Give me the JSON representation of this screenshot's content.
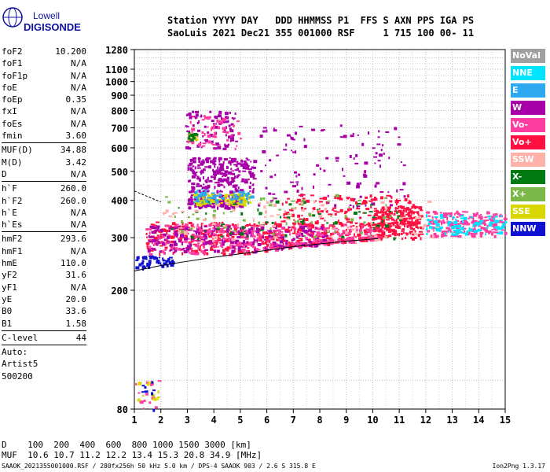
{
  "logo": {
    "line1": "Lowell",
    "line2": "DIGISONDE"
  },
  "header": {
    "line1": "Station YYYY DAY   DDD HHMMSS P1  FFS S AXN PPS IGA PS",
    "line2": "SaoLuis 2021 Dec21 355 001000 RSF     1 715 100 00- 11"
  },
  "params": [
    {
      "k": "foF2",
      "v": "10.200"
    },
    {
      "k": "foF1",
      "v": "N/A"
    },
    {
      "k": "foF1p",
      "v": "N/A"
    },
    {
      "k": "foE",
      "v": "N/A"
    },
    {
      "k": "foEp",
      "v": "0.35"
    },
    {
      "k": "fxI",
      "v": "N/A"
    },
    {
      "k": "foEs",
      "v": "N/A"
    },
    {
      "k": "fmin",
      "v": "3.60"
    },
    {
      "sep": true
    },
    {
      "k": "MUF(D)",
      "v": "34.88"
    },
    {
      "k": "M(D)",
      "v": "3.42"
    },
    {
      "k": "D",
      "v": "N/A"
    },
    {
      "sep": true
    },
    {
      "k": "h`F",
      "v": "260.0"
    },
    {
      "k": "h`F2",
      "v": "260.0"
    },
    {
      "k": "h`E",
      "v": "N/A"
    },
    {
      "k": "h`Es",
      "v": "N/A"
    },
    {
      "sep": true
    },
    {
      "k": "hmF2",
      "v": "293.6"
    },
    {
      "k": "hmF1",
      "v": "N/A"
    },
    {
      "k": "hmE",
      "v": "110.0"
    },
    {
      "k": "yF2",
      "v": "31.6"
    },
    {
      "k": "yF1",
      "v": "N/A"
    },
    {
      "k": "yE",
      "v": "20.0"
    },
    {
      "k": "B0",
      "v": "33.6"
    },
    {
      "k": "B1",
      "v": "1.58"
    },
    {
      "sep": true
    },
    {
      "k": "C-level",
      "v": "44"
    },
    {
      "sep": true
    },
    {
      "text": "Auto:"
    },
    {
      "text": "Artist5"
    },
    {
      "text": "500200"
    }
  ],
  "legend": [
    {
      "label": "NoVal",
      "color": "#a0a0a0"
    },
    {
      "label": "NNE",
      "color": "#00e5ff"
    },
    {
      "label": "E",
      "color": "#2ea8f0"
    },
    {
      "label": "W",
      "color": "#a800a8"
    },
    {
      "label": "Vo-",
      "color": "#ff3ca0"
    },
    {
      "label": "Vo+",
      "color": "#ff1040"
    },
    {
      "label": "SSW",
      "color": "#ffb0a8"
    },
    {
      "label": "X-",
      "color": "#007a10"
    },
    {
      "label": "X+",
      "color": "#7ab84a"
    },
    {
      "label": "SSE",
      "color": "#d8d800"
    },
    {
      "label": "NNW",
      "color": "#1010d0"
    }
  ],
  "muf_table": {
    "row1": "D    100  200  400  600  800 1000 1500 3000 [km]",
    "row2": "MUF  10.6 10.7 11.2 12.2 13.4 15.3 20.8 34.9 [MHz]"
  },
  "footer": "SAAOK_2021355001000.RSF / 280fx256h 50 kHz 5.0 km / DPS-4 SAAOK 903 / 2.6 S 315.8 E",
  "version": "Ion2Png 1.3.17",
  "chart_data": {
    "type": "scatter",
    "title": "",
    "xlabel": "",
    "ylabel": "",
    "xlim": [
      1,
      15
    ],
    "ylim": [
      80,
      1280
    ],
    "y_scale": "log",
    "x_ticks": [
      1,
      2,
      3,
      4,
      5,
      6,
      7,
      8,
      9,
      10,
      11,
      12,
      13,
      14,
      15
    ],
    "y_ticks": [
      80,
      200,
      300,
      400,
      500,
      600,
      700,
      800,
      900,
      1000,
      1100,
      1280
    ],
    "grid": true,
    "profile_line": {
      "x": [
        1.0,
        2.0,
        3.0,
        4.0,
        5.0,
        6.0,
        7.0,
        8.0,
        9.0,
        10.2
      ],
      "y": [
        232,
        242,
        250,
        258,
        265,
        272,
        280,
        286,
        292,
        298
      ]
    },
    "trace_clusters": [
      {
        "color": "#1010d0",
        "x": [
          1.0,
          2.4
        ],
        "y": [
          238,
          262
        ],
        "n": 60
      },
      {
        "color": "#ff1040",
        "x": [
          1.4,
          10.4
        ],
        "y": [
          265,
          340
        ],
        "n": 520
      },
      {
        "color": "#ff3ca0",
        "x": [
          1.4,
          10.4
        ],
        "y": [
          265,
          335
        ],
        "n": 420
      },
      {
        "color": "#a800a8",
        "x": [
          1.5,
          8.2
        ],
        "y": [
          270,
          330
        ],
        "n": 220
      },
      {
        "color": "#ff1040",
        "x": [
          10.0,
          11.8
        ],
        "y": [
          300,
          385
        ],
        "n": 180
      },
      {
        "color": "#ff3ca0",
        "x": [
          12.0,
          15.0
        ],
        "y": [
          305,
          370
        ],
        "n": 200
      },
      {
        "color": "#00e5ff",
        "x": [
          12.0,
          15.0
        ],
        "y": [
          310,
          360
        ],
        "n": 90
      },
      {
        "color": "#a800a8",
        "x": [
          3.0,
          5.1
        ],
        "y": [
          380,
          420
        ],
        "n": 160
      },
      {
        "color": "#d8d800",
        "x": [
          3.2,
          5.4
        ],
        "y": [
          390,
          425
        ],
        "n": 110
      },
      {
        "color": "#2ea8f0",
        "x": [
          3.2,
          5.4
        ],
        "y": [
          395,
          440
        ],
        "n": 60
      },
      {
        "color": "#a800a8",
        "x": [
          3.0,
          5.5
        ],
        "y": [
          430,
          560
        ],
        "n": 240
      },
      {
        "color": "#a800a8",
        "x": [
          2.9,
          4.8
        ],
        "y": [
          600,
          800
        ],
        "n": 90
      },
      {
        "color": "#ff3ca0",
        "x": [
          3.0,
          5.0
        ],
        "y": [
          600,
          780
        ],
        "n": 50
      },
      {
        "color": "#d8d800",
        "x": [
          3.0,
          3.3
        ],
        "y": [
          640,
          680
        ],
        "n": 12
      },
      {
        "color": "#007a10",
        "x": [
          3.0,
          3.3
        ],
        "y": [
          640,
          680
        ],
        "n": 10
      },
      {
        "color": "#a800a8",
        "x": [
          5.5,
          11.2
        ],
        "y": [
          380,
          720
        ],
        "n": 120
      },
      {
        "color": "#ff1040",
        "x": [
          6.5,
          11.5
        ],
        "y": [
          330,
          420
        ],
        "n": 160
      },
      {
        "color": "#7ab84a",
        "x": [
          2.0,
          11.0
        ],
        "y": [
          300,
          420
        ],
        "n": 70
      },
      {
        "color": "#007a10",
        "x": [
          2.0,
          11.0
        ],
        "y": [
          300,
          400
        ],
        "n": 60
      },
      {
        "color": "#ffb0a8",
        "x": [
          2.0,
          12.5
        ],
        "y": [
          290,
          400
        ],
        "n": 90
      },
      {
        "color": "#ff3ca0",
        "x": [
          1.0,
          1.9
        ],
        "y": [
          80,
          100
        ],
        "n": 16
      },
      {
        "color": "#d8d800",
        "x": [
          1.0,
          1.9
        ],
        "y": [
          80,
          100
        ],
        "n": 12
      },
      {
        "color": "#1010d0",
        "x": [
          1.0,
          1.9
        ],
        "y": [
          80,
          100
        ],
        "n": 8
      }
    ]
  }
}
